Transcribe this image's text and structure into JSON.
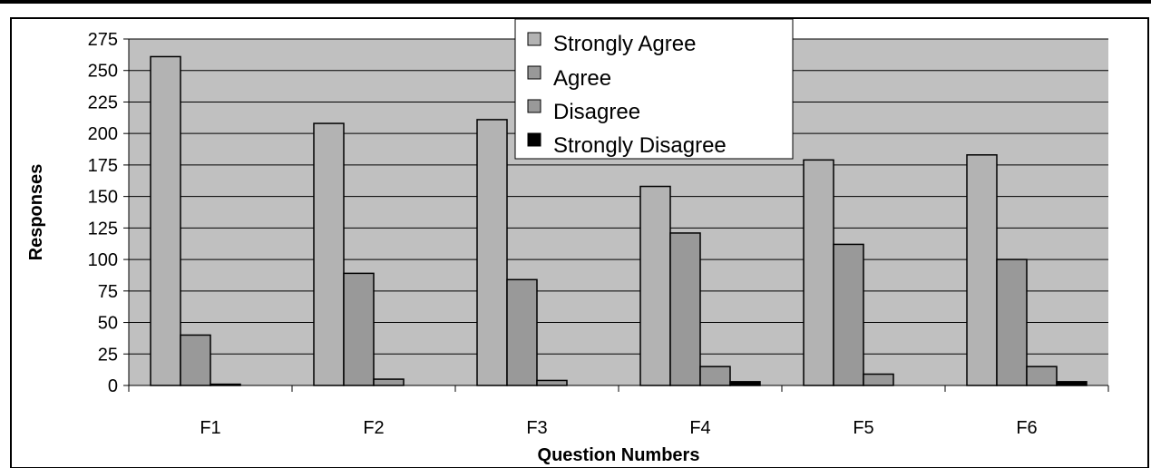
{
  "chart_data": {
    "type": "bar",
    "title": "",
    "xlabel": "Question Numbers",
    "ylabel": "Responses",
    "categories": [
      "F1",
      "F2",
      "F3",
      "F4",
      "F5",
      "F6"
    ],
    "ylim": [
      0,
      275
    ],
    "yticks": [
      0,
      25,
      50,
      75,
      100,
      125,
      150,
      175,
      200,
      225,
      250,
      275
    ],
    "grid": true,
    "legend_position": "top-center",
    "series": [
      {
        "name": "Strongly Agree",
        "values": [
          261,
          208,
          211,
          158,
          179,
          183
        ],
        "color": "#b3b3b3"
      },
      {
        "name": "Agree",
        "values": [
          40,
          89,
          84,
          121,
          112,
          100
        ],
        "color": "#999999"
      },
      {
        "name": "Disagree",
        "values": [
          1,
          5,
          4,
          15,
          9,
          15
        ],
        "color": "#999999"
      },
      {
        "name": "Strongly Disagree",
        "values": [
          0,
          0,
          0,
          3,
          0,
          3
        ],
        "color": "#000000"
      }
    ],
    "plot_background": "#c0c0c0"
  }
}
